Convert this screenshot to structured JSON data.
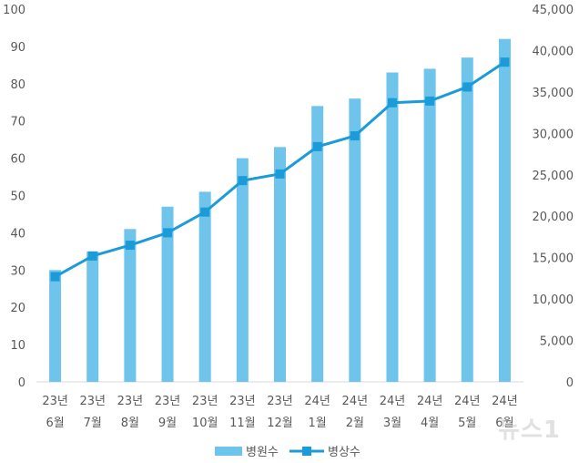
{
  "chart_data": {
    "type": "bar+line",
    "categories_line1": [
      "23년",
      "23년",
      "23년",
      "23년",
      "23년",
      "23년",
      "23년",
      "24년",
      "24년",
      "24년",
      "24년",
      "24년",
      "24년"
    ],
    "categories_line2": [
      "6월",
      "7월",
      "8월",
      "9월",
      "10월",
      "11월",
      "12월",
      "1월",
      "2월",
      "3월",
      "4월",
      "5월",
      "6월"
    ],
    "series": [
      {
        "name": "병원수",
        "type": "bar",
        "axis": "left",
        "color": "#6EC4EA",
        "values": [
          30,
          35,
          41,
          47,
          51,
          60,
          63,
          74,
          76,
          83,
          84,
          87,
          92
        ]
      },
      {
        "name": "병상수",
        "type": "line",
        "axis": "right",
        "color": "#1B9BD7",
        "values": [
          12700,
          15200,
          16500,
          18000,
          20500,
          24300,
          25100,
          28400,
          29700,
          33700,
          33900,
          35600,
          38600
        ]
      }
    ],
    "left_axis": {
      "min": 0,
      "max": 100,
      "ticks": [
        "0",
        "10",
        "20",
        "30",
        "40",
        "50",
        "60",
        "70",
        "80",
        "90",
        "100"
      ]
    },
    "right_axis": {
      "min": 0,
      "max": 45000,
      "ticks": [
        "0",
        "5,000",
        "10,000",
        "15,000",
        "20,000",
        "25,000",
        "30,000",
        "35,000",
        "40,000",
        "45,000"
      ]
    },
    "legend_position": "bottom-center"
  },
  "watermark": "뉴스1"
}
